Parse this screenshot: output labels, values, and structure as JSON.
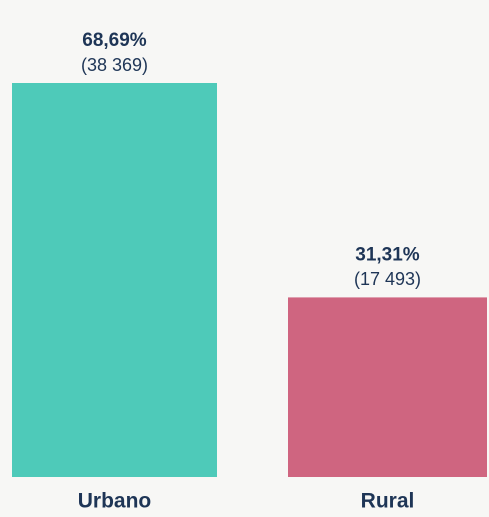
{
  "chart_data": {
    "type": "bar",
    "categories": [
      "Urbano",
      "Rural"
    ],
    "values": [
      68.69,
      31.31
    ],
    "value_labels": [
      "68,69%",
      "31,31%"
    ],
    "counts": [
      38369,
      17493
    ],
    "count_labels": [
      "(38 369)",
      "(17 493)"
    ],
    "colors": [
      "#4ecab9",
      "#cf6580"
    ]
  }
}
